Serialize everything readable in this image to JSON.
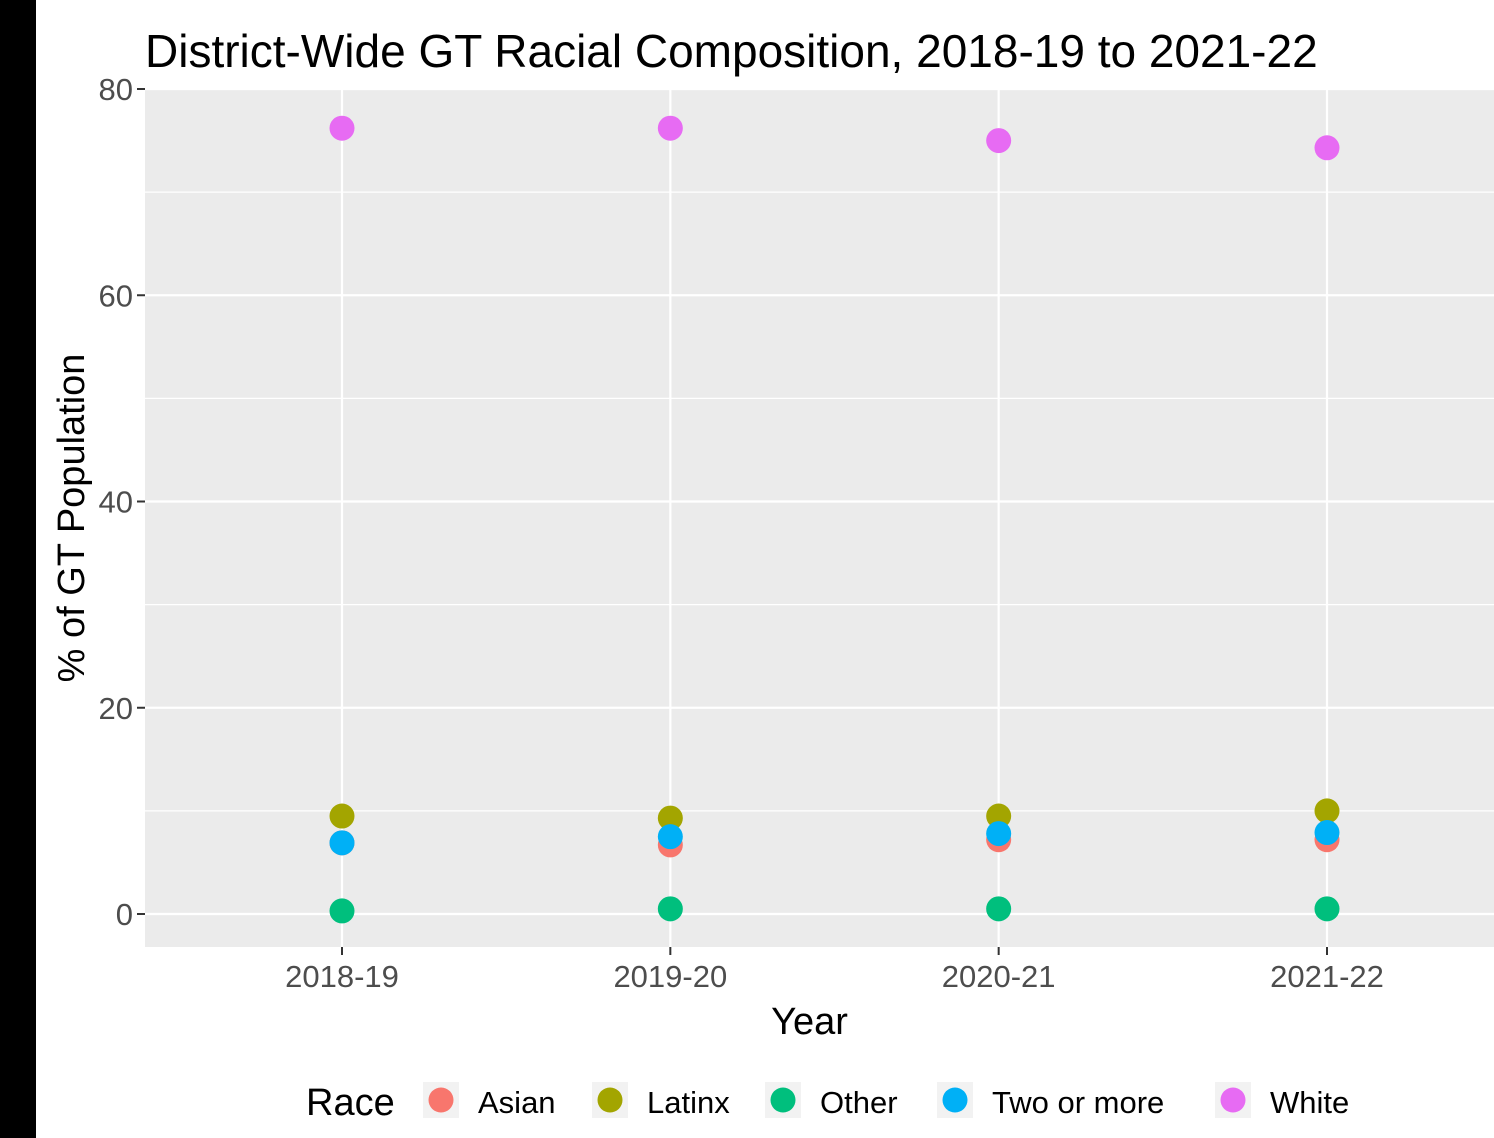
{
  "chart_data": {
    "type": "scatter",
    "title": "District-Wide GT Racial Composition, 2018-19 to 2021-22",
    "xlabel": "Year",
    "ylabel": "% of GT Population",
    "categories": [
      "2018-19",
      "2019-20",
      "2020-21",
      "2021-22"
    ],
    "ylim": [
      -3.2,
      80
    ],
    "yticks": [
      0,
      20,
      40,
      60,
      80
    ],
    "grid": true,
    "background": "#ebebeb",
    "legend": {
      "title": "Race",
      "position": "bottom"
    },
    "series": [
      {
        "name": "Asian",
        "color": "#F8766D",
        "values": [
          6.9,
          6.7,
          7.2,
          7.2
        ]
      },
      {
        "name": "Latinx",
        "color": "#A3A500",
        "values": [
          9.5,
          9.3,
          9.5,
          10.0
        ]
      },
      {
        "name": "Other",
        "color": "#00BF7D",
        "values": [
          0.3,
          0.5,
          0.5,
          0.5
        ]
      },
      {
        "name": "Two or more",
        "color": "#00B0F6",
        "values": [
          6.9,
          7.5,
          7.8,
          7.9
        ]
      },
      {
        "name": "White",
        "color": "#E76BF3",
        "values": [
          76.2,
          76.2,
          75.0,
          74.3
        ]
      }
    ]
  }
}
